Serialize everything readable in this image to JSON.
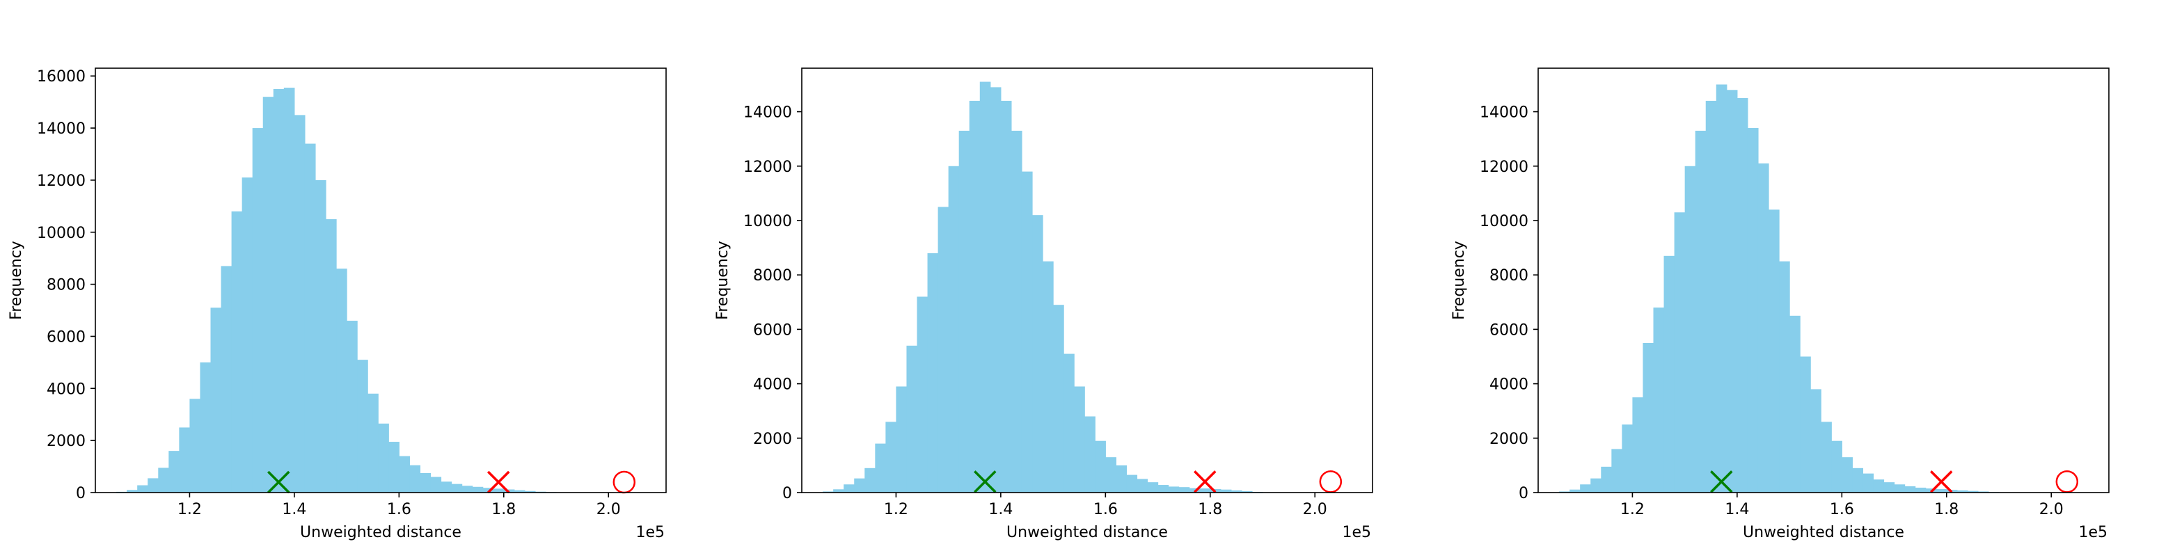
{
  "colors": {
    "bar": "#87ceeb",
    "green_marker": "#008000",
    "red_marker": "#ff0000",
    "axes": "#000000"
  },
  "chart_data": [
    {
      "type": "bar",
      "title": "",
      "xlabel": "Unweighted distance",
      "ylabel": "Frequency",
      "x_offset_label": "1e5",
      "xlim": [
        102000,
        211000
      ],
      "ylim": [
        0,
        16300
      ],
      "xticks": [
        1.2,
        1.4,
        1.6,
        1.8,
        2.0
      ],
      "yticks": [
        0,
        2000,
        4000,
        6000,
        8000,
        10000,
        12000,
        14000,
        16000
      ],
      "bin_start": 106000,
      "bin_width": 2000,
      "values": [
        30,
        100,
        280,
        550,
        950,
        1600,
        2500,
        3600,
        5000,
        7100,
        8700,
        10800,
        12100,
        14000,
        15200,
        15500,
        15550,
        14500,
        13400,
        12000,
        10500,
        8600,
        6600,
        5100,
        3800,
        2650,
        1950,
        1400,
        1050,
        750,
        600,
        420,
        330,
        260,
        220,
        180,
        150,
        120,
        90,
        60,
        35,
        20
      ],
      "markers": [
        {
          "symbol": "x",
          "color": "green",
          "x": 137000,
          "y": 400
        },
        {
          "symbol": "x",
          "color": "red",
          "x": 179000,
          "y": 400
        },
        {
          "symbol": "circle",
          "color": "red",
          "x": 203000,
          "y": 400
        }
      ]
    },
    {
      "type": "bar",
      "title": "",
      "xlabel": "Unweighted distance",
      "ylabel": "Frequency",
      "x_offset_label": "1e5",
      "xlim": [
        102000,
        211000
      ],
      "ylim": [
        0,
        15600
      ],
      "xticks": [
        1.2,
        1.4,
        1.6,
        1.8,
        2.0
      ],
      "yticks": [
        0,
        2000,
        4000,
        6000,
        8000,
        10000,
        12000,
        14000
      ],
      "bin_start": 106000,
      "bin_width": 2000,
      "values": [
        40,
        120,
        300,
        520,
        900,
        1800,
        2600,
        3900,
        5400,
        7200,
        8800,
        10500,
        12000,
        13300,
        14400,
        15100,
        14900,
        14400,
        13300,
        11800,
        10200,
        8500,
        6900,
        5100,
        3900,
        2800,
        1900,
        1300,
        1000,
        650,
        500,
        380,
        280,
        220,
        200,
        160,
        150,
        130,
        110,
        80,
        50,
        25
      ],
      "markers": [
        {
          "symbol": "x",
          "color": "green",
          "x": 137000,
          "y": 400
        },
        {
          "symbol": "x",
          "color": "red",
          "x": 179000,
          "y": 400
        },
        {
          "symbol": "circle",
          "color": "red",
          "x": 203000,
          "y": 400
        }
      ]
    },
    {
      "type": "bar",
      "title": "",
      "xlabel": "Unweighted distance",
      "ylabel": "Frequency",
      "x_offset_label": "1e5",
      "xlim": [
        102000,
        211000
      ],
      "ylim": [
        0,
        15600
      ],
      "xticks": [
        1.2,
        1.4,
        1.6,
        1.8,
        2.0
      ],
      "yticks": [
        0,
        2000,
        4000,
        6000,
        8000,
        10000,
        12000,
        14000
      ],
      "bin_start": 106000,
      "bin_width": 2000,
      "values": [
        40,
        110,
        300,
        520,
        950,
        1600,
        2500,
        3500,
        5500,
        6800,
        8700,
        10300,
        12000,
        13300,
        14400,
        15000,
        14800,
        14500,
        13400,
        12100,
        10400,
        8500,
        6500,
        5000,
        3800,
        2600,
        1900,
        1300,
        900,
        700,
        480,
        380,
        300,
        230,
        180,
        150,
        130,
        100,
        80,
        60,
        40,
        20
      ],
      "markers": [
        {
          "symbol": "x",
          "color": "green",
          "x": 137000,
          "y": 400
        },
        {
          "symbol": "x",
          "color": "red",
          "x": 179000,
          "y": 400
        },
        {
          "symbol": "circle",
          "color": "red",
          "x": 203000,
          "y": 400
        }
      ]
    }
  ]
}
